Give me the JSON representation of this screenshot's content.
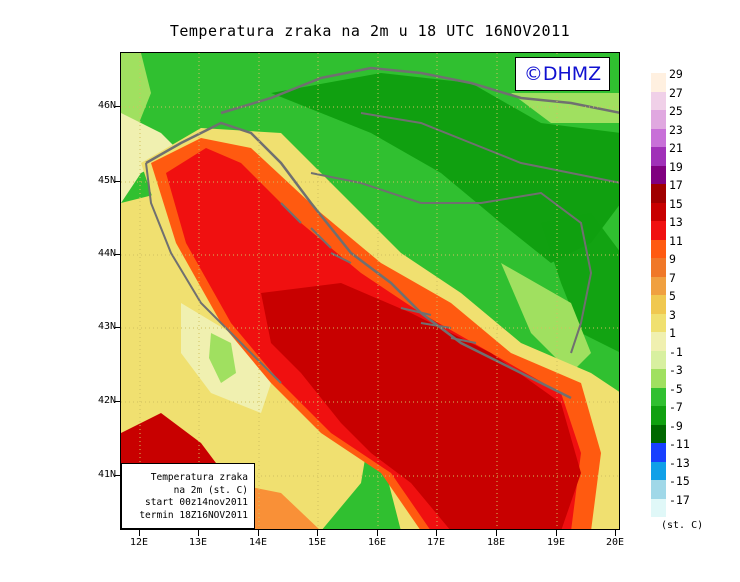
{
  "title": "Temperatura zraka na 2m u 18 UTC 16NOV2011",
  "logo_text": "©DHMZ",
  "info_box": {
    "line1": "Temperatura zraka",
    "line2": "na 2m (st. C)",
    "line3": "start 00z14nov2011",
    "line4": "termin 18Z16NOV2011"
  },
  "lat_labels": [
    "46N",
    "45N",
    "44N",
    "43N",
    "42N",
    "41N"
  ],
  "lon_labels": [
    "12E",
    "13E",
    "14E",
    "15E",
    "16E",
    "17E",
    "18E",
    "19E",
    "20E"
  ],
  "legend": {
    "unit": "(st. C)",
    "labels": [
      "29",
      "27",
      "25",
      "23",
      "21",
      "19",
      "17",
      "15",
      "13",
      "11",
      "9",
      "7",
      "5",
      "3",
      "1",
      "-1",
      "-3",
      "-5",
      "-7",
      "-9",
      "-11",
      "-13",
      "-15",
      "-17"
    ],
    "colors": [
      "#fff0e0",
      "#f0d0e8",
      "#e0a8e0",
      "#c870d8",
      "#a030b8",
      "#800080",
      "#a00000",
      "#c80000",
      "#f01010",
      "#ff5a10",
      "#f07828",
      "#f0a040",
      "#f0c850",
      "#f0e070",
      "#f0f0b0",
      "#d8f0a0",
      "#a0e060",
      "#30c030",
      "#10a010",
      "#006800",
      "#1840ff",
      "#10a0e8",
      "#a0d8e8",
      "#e0f8f8"
    ]
  },
  "map": {
    "colors": {
      "land_dark_green": "#10a010",
      "land_green": "#30c030",
      "land_light": "#a0e060",
      "coast_yellow": "#f0e070",
      "sea_orange": "#f07828",
      "sea_red": "#f01010",
      "sea_dark_red": "#c80000",
      "border": "#707070"
    }
  }
}
